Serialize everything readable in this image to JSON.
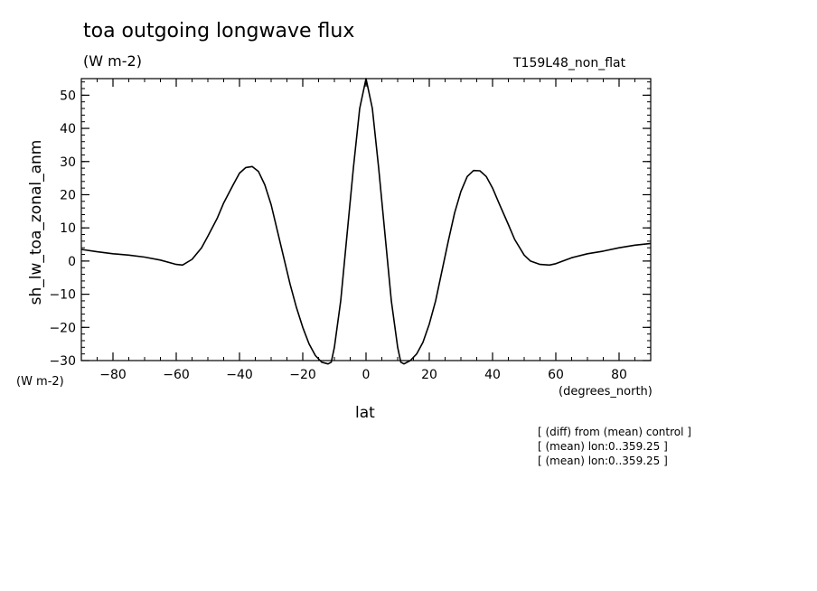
{
  "chart_data": {
    "type": "line",
    "title": "toa outgoing longwave flux",
    "units": "(W m-2)",
    "run_label": "T159L48_non_flat",
    "xlabel": "lat",
    "xunits": "(degrees_north)",
    "ylabel": "sh_lw_toa_zonal_anm",
    "yunits": "(W m-2)",
    "xlim": [
      -90,
      90
    ],
    "ylim": [
      -30,
      55
    ],
    "xticks": [
      -80,
      -60,
      -40,
      -20,
      0,
      20,
      40,
      60,
      80
    ],
    "yticks": [
      -30,
      -20,
      -10,
      0,
      10,
      20,
      30,
      40,
      50
    ],
    "grid": false,
    "series": [
      {
        "x": [
          -90,
          -85,
          -80,
          -75,
          -70,
          -65,
          -60,
          -58,
          -55,
          -52,
          -50,
          -47,
          -45,
          -42,
          -40,
          -38,
          -36,
          -34,
          -32,
          -30,
          -28,
          -26,
          -24,
          -22,
          -20,
          -18,
          -16,
          -14,
          -12,
          -11,
          -10,
          -8,
          -6,
          -4,
          -2,
          0,
          2,
          4,
          6,
          8,
          10,
          11,
          12,
          14,
          16,
          18,
          20,
          22,
          24,
          26,
          28,
          30,
          32,
          34,
          36,
          38,
          40,
          42,
          45,
          47,
          50,
          52,
          55,
          58,
          60,
          65,
          70,
          75,
          80,
          85,
          90
        ],
        "y": [
          3.5,
          2.8,
          2.2,
          1.8,
          1.2,
          0.3,
          -1.0,
          -1.2,
          0.5,
          4.0,
          7.5,
          13.0,
          17.5,
          23.0,
          26.5,
          28.2,
          28.5,
          27.0,
          23.0,
          17.0,
          9.0,
          1.0,
          -7.0,
          -14.0,
          -20.0,
          -25.0,
          -28.5,
          -30.5,
          -31.0,
          -30.5,
          -26.0,
          -12.0,
          8.0,
          28.0,
          46.0,
          55.0,
          46.0,
          28.0,
          8.0,
          -12.0,
          -26.0,
          -30.5,
          -31.0,
          -30.0,
          -28.0,
          -24.5,
          -19.0,
          -12.0,
          -3.0,
          6.0,
          14.5,
          21.0,
          25.5,
          27.3,
          27.2,
          25.5,
          22.0,
          17.5,
          11.0,
          6.5,
          1.8,
          0.0,
          -1.0,
          -1.2,
          -0.8,
          1.0,
          2.2,
          3.0,
          4.0,
          4.8,
          5.3
        ]
      }
    ]
  },
  "annotations": [
    "[ (diff) from (mean) control ]",
    "[ (mean) lon:0..359.25 ]",
    "[ (mean) lon:0..359.25 ]"
  ]
}
